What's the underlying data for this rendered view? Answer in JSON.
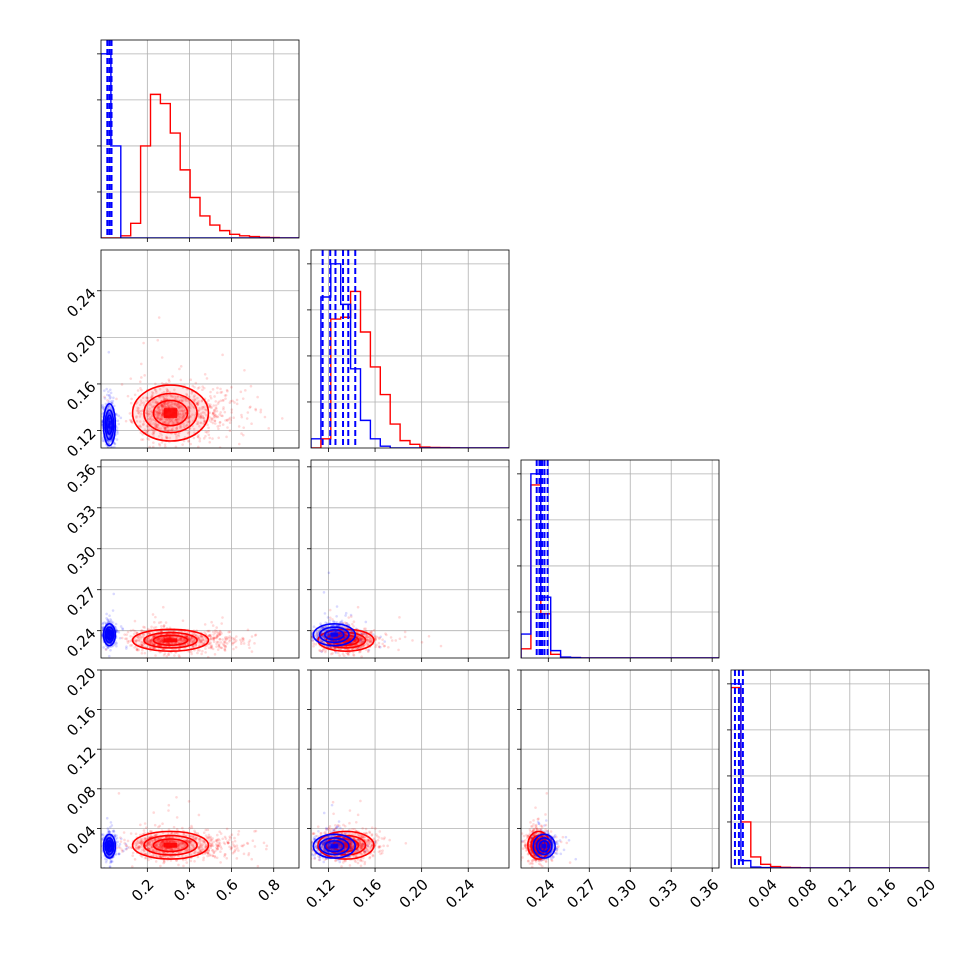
{
  "chart_data": {
    "type": "corner",
    "grid": true,
    "colors": {
      "blue": "#0000ff",
      "red": "#ff0000",
      "grid": "#b0b0b0"
    },
    "series": [
      {
        "color": "#0000ff"
      },
      {
        "color": "#ff0000"
      }
    ],
    "parameters": [
      {
        "range": [
          -0.02,
          0.92
        ],
        "ticks": [
          0.2,
          0.4,
          0.6,
          0.8
        ],
        "tick_labels": [
          "0.2",
          "0.4",
          "0.6",
          "0.8"
        ]
      },
      {
        "range": [
          0.105,
          0.275
        ],
        "ticks": [
          0.12,
          0.16,
          0.2,
          0.24
        ],
        "tick_labels": [
          "0.12",
          "0.16",
          "0.20",
          "0.24"
        ]
      },
      {
        "range": [
          0.22,
          0.365
        ],
        "ticks": [
          0.24,
          0.27,
          0.3,
          0.33,
          0.36
        ],
        "tick_labels": [
          "0.24",
          "0.27",
          "0.30",
          "0.33",
          "0.36"
        ]
      },
      {
        "range": [
          0.0,
          0.2
        ],
        "ticks": [
          0.04,
          0.08,
          0.12,
          0.16,
          0.2
        ],
        "tick_labels": [
          "0.04",
          "0.08",
          "0.12",
          "0.16",
          "0.20"
        ]
      }
    ],
    "histograms": [
      {
        "bin_edges": [
          -0.02,
          0.027,
          0.074,
          0.121,
          0.168,
          0.215,
          0.262,
          0.309,
          0.356,
          0.403,
          0.45,
          0.497,
          0.544,
          0.591,
          0.638,
          0.685,
          0.732,
          0.779,
          0.826,
          0.873,
          0.92
        ],
        "blue": [
          1.0,
          0.5,
          0.0,
          0,
          0,
          0,
          0,
          0,
          0,
          0,
          0,
          0,
          0,
          0,
          0,
          0,
          0,
          0,
          0,
          0
        ],
        "red": [
          0.0,
          0.0,
          0.012,
          0.08,
          0.5,
          0.78,
          0.73,
          0.57,
          0.37,
          0.22,
          0.12,
          0.07,
          0.04,
          0.02,
          0.012,
          0.008,
          0.004,
          0.002,
          0.0,
          0.0
        ],
        "blue_quantiles": [
          0.01,
          0.02,
          0.03
        ],
        "red_quantiles": []
      },
      {
        "bin_edges": [
          0.105,
          0.1135,
          0.122,
          0.1305,
          0.139,
          0.1475,
          0.156,
          0.1645,
          0.173,
          0.1815,
          0.19,
          0.1985,
          0.207,
          0.2155,
          0.224,
          0.2325,
          0.241,
          0.2495,
          0.258,
          0.2665,
          0.275
        ],
        "blue": [
          0.05,
          0.82,
          1.0,
          0.78,
          0.43,
          0.15,
          0.05,
          0.01,
          0,
          0,
          0,
          0,
          0,
          0,
          0,
          0,
          0,
          0,
          0,
          0
        ],
        "red": [
          0.0,
          0.05,
          0.7,
          0.71,
          0.85,
          0.63,
          0.44,
          0.29,
          0.13,
          0.04,
          0.02,
          0.005,
          0.003,
          0.002,
          0.001,
          0,
          0,
          0,
          0,
          0
        ],
        "blue_quantiles": [
          0.115,
          0.126,
          0.137
        ],
        "red_quantiles": [
          0.1215,
          0.1325,
          0.143
        ]
      },
      {
        "bin_edges": [
          0.22,
          0.22725,
          0.2345,
          0.24175,
          0.249,
          0.25625,
          0.2635,
          0.27075,
          0.278,
          0.28525,
          0.2925,
          0.29975,
          0.307,
          0.31425,
          0.3215,
          0.32875,
          0.336,
          0.34325,
          0.3505,
          0.35775,
          0.365
        ],
        "blue": [
          0.13,
          1.0,
          0.33,
          0.04,
          0.005,
          0.002,
          0,
          0,
          0,
          0,
          0,
          0,
          0,
          0,
          0,
          0,
          0,
          0,
          0,
          0
        ],
        "red": [
          0.05,
          0.94,
          0.24,
          0.02,
          0.004,
          0.002,
          0,
          0,
          0,
          0,
          0,
          0,
          0,
          0,
          0,
          0,
          0,
          0,
          0,
          0
        ],
        "blue_quantiles": [
          0.2345,
          0.2372,
          0.2395
        ],
        "red_quantiles": [
          0.2315,
          0.2335,
          0.2355
        ]
      },
      {
        "bin_edges": [
          0.0,
          0.01,
          0.02,
          0.03,
          0.04,
          0.05,
          0.06,
          0.07,
          0.08,
          0.09,
          0.1,
          0.11,
          0.12,
          0.13,
          0.14,
          0.15,
          0.16,
          0.17,
          0.18,
          0.19,
          0.2
        ],
        "blue": [
          1.0,
          0.04,
          0.005,
          0.002,
          0,
          0,
          0,
          0,
          0,
          0,
          0,
          0,
          0,
          0,
          0,
          0,
          0,
          0,
          0,
          0
        ],
        "red": [
          0.98,
          0.25,
          0.06,
          0.02,
          0.008,
          0.004,
          0.002,
          0.001,
          0,
          0,
          0,
          0,
          0,
          0,
          0,
          0,
          0,
          0,
          0,
          0
        ],
        "blue_quantiles": [
          0.004,
          0.008,
          0.012
        ],
        "red_quantiles": []
      }
    ],
    "distributions": {
      "blue": {
        "mean": [
          0.02,
          0.125,
          0.237,
          0.022
        ],
        "std": [
          0.014,
          0.009,
          0.004,
          0.006
        ]
      },
      "red": {
        "mean": [
          0.31,
          0.135,
          0.233,
          0.023
        ],
        "std": [
          0.09,
          0.012,
          0.004,
          0.007
        ]
      }
    }
  }
}
